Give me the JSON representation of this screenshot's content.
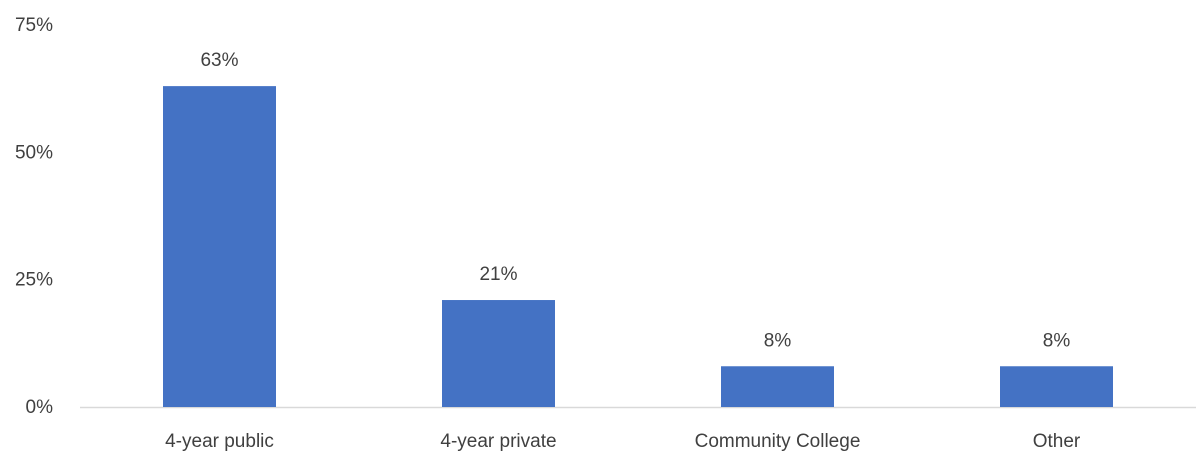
{
  "chart_data": {
    "type": "bar",
    "categories": [
      "4-year public",
      "4-year private",
      "Community College",
      "Other"
    ],
    "values": [
      63,
      21,
      8,
      8
    ],
    "data_labels": [
      "63%",
      "21%",
      "8%",
      "8%"
    ],
    "ylim": [
      0,
      75
    ],
    "yticks": [
      0,
      25,
      50,
      75
    ],
    "ytick_labels": [
      "0%",
      "25%",
      "50%",
      "75%"
    ],
    "grid": false,
    "legend": "none",
    "bar_color": "#4472C4",
    "axis_color": "#D9D9D9"
  }
}
